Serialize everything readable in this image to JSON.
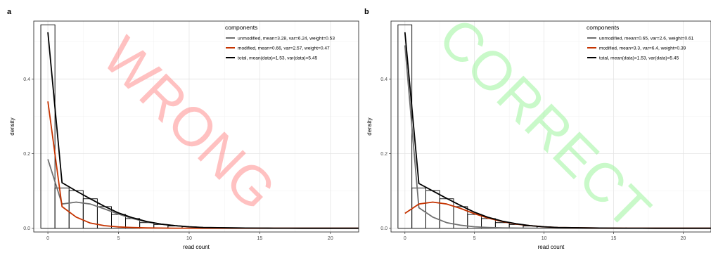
{
  "chart_data": [
    {
      "type": "line",
      "panel_label": "a",
      "watermark": "WRONG",
      "watermark_color": "#ff8f8f",
      "xlabel": "read count",
      "ylabel": "density",
      "xlim": [
        -1,
        22
      ],
      "ylim": [
        -0.01,
        0.555
      ],
      "x_ticks": [
        0,
        5,
        10,
        15,
        20
      ],
      "y_ticks": [
        0.0,
        0.2,
        0.4
      ],
      "y_tick_labels": [
        "0.0",
        "0.2",
        "0.4"
      ],
      "grid": true,
      "legend_title": "components",
      "legend_position": "top-right",
      "histogram": {
        "bins": [
          0,
          1,
          2,
          3,
          4,
          5,
          6,
          7,
          8,
          9,
          10,
          11,
          12,
          13,
          14,
          15,
          16,
          17,
          18,
          19,
          20,
          21,
          22
        ],
        "values": [
          0.545,
          0.108,
          0.101,
          0.079,
          0.058,
          0.037,
          0.026,
          0.015,
          0.01,
          0.006,
          0.004,
          0.002,
          0.002,
          0.001,
          0.001,
          0.0,
          0.0,
          0.0,
          0.0,
          0.0,
          0.0,
          0.0,
          0.0
        ]
      },
      "series": [
        {
          "name": "unmodified, mean=3.28, var=6.24, weight=0.53",
          "color": "#707070",
          "x": [
            0,
            1,
            2,
            3,
            4,
            5,
            6,
            7,
            8,
            9,
            10,
            11,
            12,
            13,
            14,
            15,
            16,
            17,
            18,
            19,
            20,
            21,
            22
          ],
          "values": [
            0.185,
            0.065,
            0.07,
            0.065,
            0.052,
            0.038,
            0.026,
            0.017,
            0.011,
            0.007,
            0.004,
            0.002,
            0.0015,
            0.001,
            0.0005,
            0.0003,
            0.0002,
            0.0001,
            0.0,
            0.0,
            0.0,
            0.0,
            0.0
          ]
        },
        {
          "name": "modified, mean=0.66, var=2.57, weight=0.47",
          "color": "#c53300",
          "x": [
            0,
            1,
            2,
            3,
            4,
            5,
            6,
            7,
            8,
            9,
            10,
            11,
            12,
            13,
            14,
            15,
            16,
            17,
            18,
            19,
            20,
            21,
            22
          ],
          "values": [
            0.34,
            0.058,
            0.03,
            0.014,
            0.007,
            0.0035,
            0.002,
            0.001,
            0.0005,
            0.0002,
            0.0001,
            0.0,
            0.0,
            0.0,
            0.0,
            0.0,
            0.0,
            0.0,
            0.0,
            0.0,
            0.0,
            0.0,
            0.0
          ]
        },
        {
          "name": "total, mean(data)=1.53, var(data)=5.45",
          "color": "#000000",
          "x": [
            0,
            1,
            2,
            3,
            4,
            5,
            6,
            7,
            8,
            9,
            10,
            11,
            12,
            13,
            14,
            15,
            16,
            17,
            18,
            19,
            20,
            21,
            22
          ],
          "values": [
            0.525,
            0.122,
            0.1,
            0.079,
            0.059,
            0.041,
            0.028,
            0.018,
            0.011,
            0.007,
            0.004,
            0.002,
            0.0015,
            0.001,
            0.0005,
            0.0003,
            0.0002,
            0.0001,
            0.0,
            0.0,
            0.0,
            0.0,
            0.0
          ]
        }
      ]
    },
    {
      "type": "line",
      "panel_label": "b",
      "watermark": "CORRECT",
      "watermark_color": "#9df59d",
      "xlabel": "read count",
      "ylabel": "density",
      "xlim": [
        -1,
        22
      ],
      "ylim": [
        -0.01,
        0.555
      ],
      "x_ticks": [
        0,
        5,
        10,
        15,
        20
      ],
      "y_ticks": [
        0.0,
        0.2,
        0.4
      ],
      "y_tick_labels": [
        "0.0",
        "0.2",
        "0.4"
      ],
      "grid": true,
      "legend_title": "components",
      "legend_position": "top-right",
      "histogram": {
        "bins": [
          0,
          1,
          2,
          3,
          4,
          5,
          6,
          7,
          8,
          9,
          10,
          11,
          12,
          13,
          14,
          15,
          16,
          17,
          18,
          19,
          20,
          21,
          22
        ],
        "values": [
          0.545,
          0.108,
          0.101,
          0.079,
          0.058,
          0.037,
          0.026,
          0.015,
          0.01,
          0.006,
          0.004,
          0.002,
          0.002,
          0.001,
          0.001,
          0.0,
          0.0,
          0.0,
          0.0,
          0.0,
          0.0,
          0.0,
          0.0
        ]
      },
      "series": [
        {
          "name": "unmodified, mean=0.65, var=2.6, weight=0.61",
          "color": "#707070",
          "x": [
            0,
            1,
            2,
            3,
            4,
            5,
            6,
            7,
            8,
            9,
            10,
            11,
            12,
            13,
            14,
            15,
            16,
            17,
            18,
            19,
            20,
            21,
            22
          ],
          "values": [
            0.49,
            0.055,
            0.03,
            0.015,
            0.008,
            0.004,
            0.002,
            0.001,
            0.0005,
            0.0002,
            0.0001,
            0.0,
            0.0,
            0.0,
            0.0,
            0.0,
            0.0,
            0.0,
            0.0,
            0.0,
            0.0,
            0.0,
            0.0
          ]
        },
        {
          "name": "modified, mean=3.3, var=6.4, weight=0.39",
          "color": "#c53300",
          "x": [
            0,
            1,
            2,
            3,
            4,
            5,
            6,
            7,
            8,
            9,
            10,
            11,
            12,
            13,
            14,
            15,
            16,
            17,
            18,
            19,
            20,
            21,
            22
          ],
          "values": [
            0.04,
            0.065,
            0.07,
            0.065,
            0.053,
            0.039,
            0.027,
            0.018,
            0.011,
            0.007,
            0.004,
            0.002,
            0.0015,
            0.001,
            0.0005,
            0.0003,
            0.0002,
            0.0001,
            0.0,
            0.0,
            0.0,
            0.0,
            0.0
          ]
        },
        {
          "name": "total, mean(data)=1.53, var(data)=5.45",
          "color": "#000000",
          "x": [
            0,
            1,
            2,
            3,
            4,
            5,
            6,
            7,
            8,
            9,
            10,
            11,
            12,
            13,
            14,
            15,
            16,
            17,
            18,
            19,
            20,
            21,
            22
          ],
          "values": [
            0.525,
            0.12,
            0.1,
            0.08,
            0.061,
            0.043,
            0.029,
            0.019,
            0.012,
            0.007,
            0.004,
            0.002,
            0.0015,
            0.001,
            0.0005,
            0.0003,
            0.0002,
            0.0001,
            0.0,
            0.0,
            0.0,
            0.0,
            0.0
          ]
        }
      ]
    }
  ]
}
